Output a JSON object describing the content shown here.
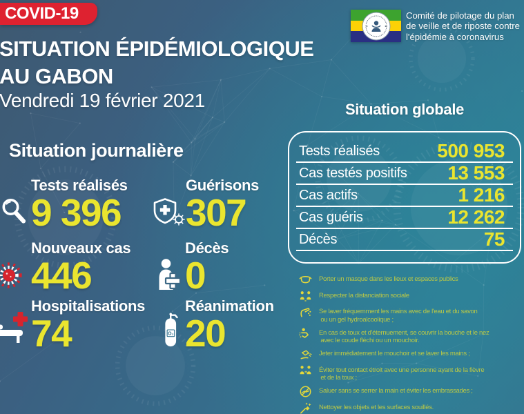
{
  "colors": {
    "accent_red": "#de2230",
    "accent_yellow": "#eae52f",
    "advice_text": "#bac846",
    "flag_green": "#3da32f",
    "flag_yellow": "#fcd106",
    "flag_blue": "#2a2f83"
  },
  "banner": {
    "label": "COVID-19"
  },
  "logo": {
    "org_line1": "Comité de pilotage du plan",
    "org_line2": "de veille et de riposte contre",
    "org_line3": "l'épidémie à coronavirus"
  },
  "header": {
    "title_line1": "SITUATION ÉPIDÉMIOLOGIQUE",
    "title_line2": "AU GABON",
    "date": "Vendredi 19 février 2021"
  },
  "daily": {
    "title": "Situation journalière",
    "o2_label": "O₂",
    "stats": [
      {
        "icon": "magnifier-icon",
        "label": "Tests réalisés",
        "value": "9 396"
      },
      {
        "icon": "shield-cross-virus-icon",
        "label": "Guérisons",
        "value": "307"
      },
      {
        "icon": "virus-icon",
        "label": "Nouveaux cas",
        "value": "446"
      },
      {
        "icon": "person-medical-cross-icon",
        "label": "Décès",
        "value": "0"
      },
      {
        "icon": "hospital-bed-icon",
        "label": "Hospitalisations",
        "value": "74"
      },
      {
        "icon": "oxygen-tank-icon",
        "label": "Réanimation",
        "value": "20"
      }
    ]
  },
  "global": {
    "title": "Situation globale",
    "rows": [
      {
        "label": "Tests réalisés",
        "value": "500 953"
      },
      {
        "label": "Cas testés positifs",
        "value": "13 553"
      },
      {
        "label": "Cas actifs",
        "value": "1 216"
      },
      {
        "label": "Cas guéris",
        "value": "12 262"
      },
      {
        "label": "Décès",
        "value": "75"
      }
    ]
  },
  "advice": {
    "items": [
      {
        "icon": "mask-icon",
        "text": "Porter un masque dans les lieux et espaces publics"
      },
      {
        "icon": "social-distance-icon",
        "text": "Respecter la distanciation sociale"
      },
      {
        "icon": "wash-hands-icon",
        "text": "Se laver fréquemment les mains avec de l'eau et du savon\n ou un gel hydroalcoolique ;"
      },
      {
        "icon": "cough-elbow-icon",
        "text": "En cas de toux et d'éternuement, se couvrir la bouche et le nez\n avec le coude fléchi ou un mouchoir."
      },
      {
        "icon": "throw-tissue-icon",
        "text": "Jeter immédiatement le mouchoir et se laver les mains ;"
      },
      {
        "icon": "avoid-contact-icon",
        "text": "Éviter tout contact étroit avec une personne ayant de la fièvre\n et de la toux ;"
      },
      {
        "icon": "no-handshake-icon",
        "text": "Saluer sans se serrer la main et éviter les embrassades ;"
      },
      {
        "icon": "clean-surfaces-icon",
        "text": "Nettoyer les objets et les surfaces souillés."
      }
    ]
  }
}
